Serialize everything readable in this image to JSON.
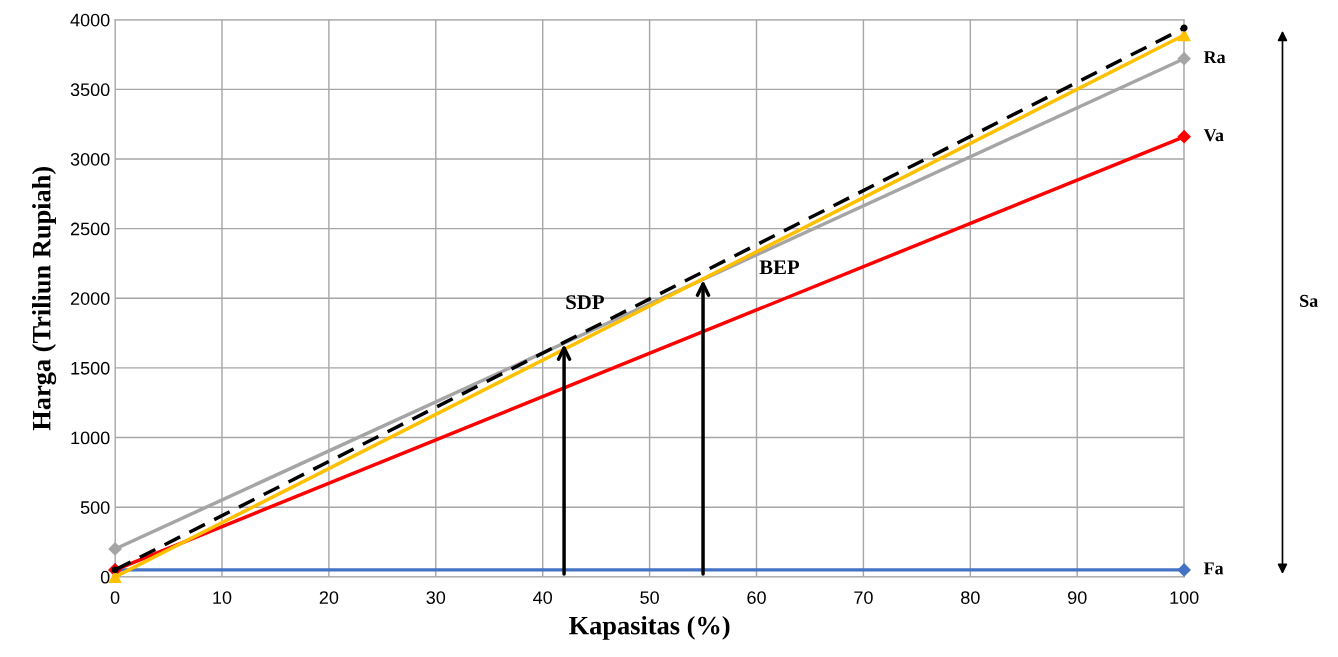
{
  "chart_data": {
    "type": "line",
    "xlabel": "Kapasitas (%)",
    "ylabel": "Harga (Triliun Rupiah)",
    "x": [
      0,
      100
    ],
    "xlim": [
      0,
      100
    ],
    "xticks": [
      0,
      10,
      20,
      30,
      40,
      50,
      60,
      70,
      80,
      90,
      100
    ],
    "ylim": [
      0,
      4000
    ],
    "yticks": [
      0,
      500,
      1000,
      1500,
      2000,
      2500,
      3000,
      3500,
      4000
    ],
    "grid": true,
    "legend": false,
    "series": [
      {
        "name": "Fa",
        "color": "#4472c4",
        "values": [
          50,
          50
        ],
        "marker": "diamond",
        "line_style": "solid"
      },
      {
        "name": "Va",
        "color": "#ff0000",
        "values": [
          50,
          3160
        ],
        "marker": "diamond",
        "line_style": "solid"
      },
      {
        "name": "Ra",
        "color": "#a5a5a5",
        "values": [
          200,
          3720
        ],
        "marker": "diamond",
        "line_style": "solid"
      },
      {
        "color": "#ffc000",
        "values": [
          0,
          3890
        ],
        "marker": "triangle",
        "line_style": "solid"
      },
      {
        "color": "#000000",
        "values": [
          50,
          3940
        ],
        "marker": "circle",
        "line_style": "dashed"
      }
    ],
    "annotations": [
      {
        "text": "SDP",
        "x": 42,
        "y": 1690
      },
      {
        "text": "BEP",
        "x": 55,
        "y": 2150
      },
      "Sa"
    ]
  }
}
